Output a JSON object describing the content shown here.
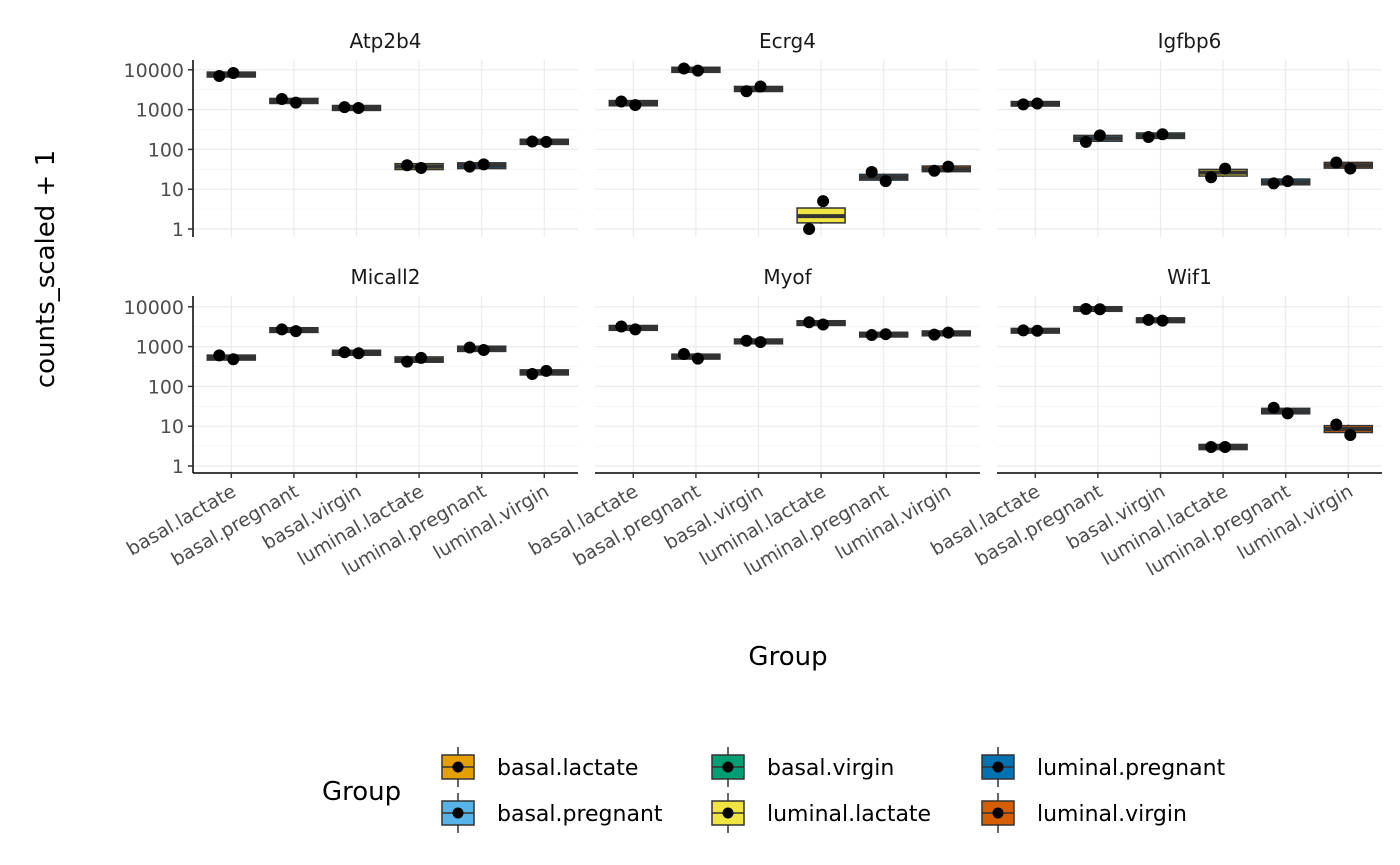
{
  "chart_data": {
    "type": "boxplot",
    "y_scale": "log10",
    "ylabel": "counts_scaled + 1",
    "xlabel": "Group",
    "y_ticks": [
      "1",
      "10",
      "100",
      "1000",
      "10000"
    ],
    "y_tick_values": [
      1,
      10,
      100,
      1000,
      10000
    ],
    "categories": [
      "basal.lactate",
      "basal.pregnant",
      "basal.virgin",
      "luminal.lactate",
      "luminal.pregnant",
      "luminal.virgin"
    ],
    "grid": true,
    "layout": {
      "rows": 2,
      "cols": 3
    },
    "panels": [
      {
        "title": "Atp2b4",
        "groups": [
          {
            "name": "basal.lactate",
            "median": 7600,
            "q1": 7400,
            "q3": 7800,
            "points": [
              7000,
              8300
            ]
          },
          {
            "name": "basal.pregnant",
            "median": 1650,
            "q1": 1600,
            "q3": 1700,
            "points": [
              1850,
              1500
            ]
          },
          {
            "name": "basal.virgin",
            "median": 1100,
            "q1": 1070,
            "q3": 1130,
            "points": [
              1150,
              1100
            ]
          },
          {
            "name": "luminal.lactate",
            "median": 37,
            "q1": 35,
            "q3": 39,
            "points": [
              40,
              34
            ]
          },
          {
            "name": "luminal.pregnant",
            "median": 39,
            "q1": 37,
            "q3": 41,
            "points": [
              37,
              42
            ]
          },
          {
            "name": "luminal.virgin",
            "median": 155,
            "q1": 150,
            "q3": 160,
            "points": [
              158,
              155
            ]
          }
        ]
      },
      {
        "title": "Ecrg4",
        "groups": [
          {
            "name": "basal.lactate",
            "median": 1450,
            "q1": 1400,
            "q3": 1500,
            "points": [
              1600,
              1300
            ]
          },
          {
            "name": "basal.pregnant",
            "median": 10000,
            "q1": 9700,
            "q3": 10300,
            "points": [
              10800,
              9500
            ]
          },
          {
            "name": "basal.virgin",
            "median": 3300,
            "q1": 3200,
            "q3": 3400,
            "points": [
              2900,
              3800
            ]
          },
          {
            "name": "luminal.lactate",
            "median": 2.1,
            "q1": 1.6,
            "q3": 3.0,
            "points": [
              1.0,
              5.0
            ]
          },
          {
            "name": "luminal.pregnant",
            "median": 20,
            "q1": 19,
            "q3": 21,
            "points": [
              27,
              16
            ]
          },
          {
            "name": "luminal.virgin",
            "median": 32,
            "q1": 31,
            "q3": 34,
            "points": [
              29,
              37
            ]
          }
        ]
      },
      {
        "title": "Igfbp6",
        "groups": [
          {
            "name": "basal.lactate",
            "median": 1400,
            "q1": 1380,
            "q3": 1420,
            "points": [
              1350,
              1420
            ]
          },
          {
            "name": "basal.pregnant",
            "median": 190,
            "q1": 180,
            "q3": 200,
            "points": [
              155,
              225
            ]
          },
          {
            "name": "basal.virgin",
            "median": 220,
            "q1": 212,
            "q3": 230,
            "points": [
              205,
              240
            ]
          },
          {
            "name": "luminal.lactate",
            "median": 26,
            "q1": 24,
            "q3": 28,
            "points": [
              20,
              33
            ]
          },
          {
            "name": "luminal.pregnant",
            "median": 15,
            "q1": 14.5,
            "q3": 16,
            "points": [
              14,
              16
            ]
          },
          {
            "name": "luminal.virgin",
            "median": 40,
            "q1": 38,
            "q3": 42,
            "points": [
              47,
              33
            ]
          }
        ]
      },
      {
        "title": "Micall2",
        "groups": [
          {
            "name": "basal.lactate",
            "median": 530,
            "q1": 515,
            "q3": 545,
            "points": [
              600,
              480
            ]
          },
          {
            "name": "basal.pregnant",
            "median": 2600,
            "q1": 2550,
            "q3": 2650,
            "points": [
              2700,
              2450
            ]
          },
          {
            "name": "basal.virgin",
            "median": 700,
            "q1": 680,
            "q3": 720,
            "points": [
              720,
              680
            ]
          },
          {
            "name": "luminal.lactate",
            "median": 470,
            "q1": 455,
            "q3": 490,
            "points": [
              420,
              520
            ]
          },
          {
            "name": "luminal.pregnant",
            "median": 880,
            "q1": 850,
            "q3": 910,
            "points": [
              950,
              820
            ]
          },
          {
            "name": "luminal.virgin",
            "median": 225,
            "q1": 218,
            "q3": 232,
            "points": [
              205,
              245
            ]
          }
        ]
      },
      {
        "title": "Myof",
        "groups": [
          {
            "name": "basal.lactate",
            "median": 2950,
            "q1": 2880,
            "q3": 3020,
            "points": [
              3200,
              2700
            ]
          },
          {
            "name": "basal.pregnant",
            "median": 560,
            "q1": 545,
            "q3": 575,
            "points": [
              650,
              500
            ]
          },
          {
            "name": "basal.virgin",
            "median": 1350,
            "q1": 1320,
            "q3": 1380,
            "points": [
              1400,
              1300
            ]
          },
          {
            "name": "luminal.lactate",
            "median": 3900,
            "q1": 3820,
            "q3": 3980,
            "points": [
              4100,
              3600
            ]
          },
          {
            "name": "luminal.pregnant",
            "median": 2000,
            "q1": 1960,
            "q3": 2040,
            "points": [
              1950,
              2050
            ]
          },
          {
            "name": "luminal.virgin",
            "median": 2150,
            "q1": 2100,
            "q3": 2200,
            "points": [
              2000,
              2250
            ]
          }
        ]
      },
      {
        "title": "Wif1",
        "groups": [
          {
            "name": "basal.lactate",
            "median": 2500,
            "q1": 2450,
            "q3": 2550,
            "points": [
              2550,
              2500
            ]
          },
          {
            "name": "basal.pregnant",
            "median": 8800,
            "q1": 8650,
            "q3": 8950,
            "points": [
              8800,
              8700
            ]
          },
          {
            "name": "basal.virgin",
            "median": 4600,
            "q1": 4500,
            "q3": 4700,
            "points": [
              4700,
              4500
            ]
          },
          {
            "name": "luminal.lactate",
            "median": 3.0,
            "q1": 2.9,
            "q3": 3.1,
            "points": [
              3.0,
              3.0
            ]
          },
          {
            "name": "luminal.pregnant",
            "median": 24,
            "q1": 23,
            "q3": 25,
            "points": [
              29,
              21
            ]
          },
          {
            "name": "luminal.virgin",
            "median": 8.5,
            "q1": 7.8,
            "q3": 9.2,
            "points": [
              11,
              6
            ]
          }
        ]
      }
    ],
    "legend": {
      "title": "Group",
      "position": "bottom",
      "items": [
        {
          "label": "basal.lactate",
          "color": "#E69F00"
        },
        {
          "label": "basal.pregnant",
          "color": "#56B4E9"
        },
        {
          "label": "basal.virgin",
          "color": "#009E73"
        },
        {
          "label": "luminal.lactate",
          "color": "#F0E442"
        },
        {
          "label": "luminal.pregnant",
          "color": "#0072B2"
        },
        {
          "label": "luminal.virgin",
          "color": "#D55E00"
        }
      ]
    }
  }
}
